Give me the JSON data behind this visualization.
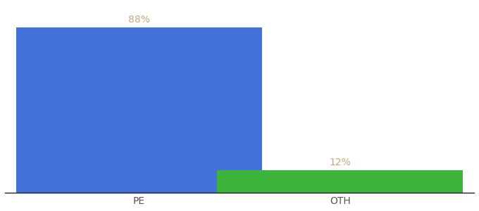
{
  "categories": [
    "PE",
    "OTH"
  ],
  "values": [
    88,
    12
  ],
  "bar_colors": [
    "#4472db",
    "#3db53d"
  ],
  "label_color": "#c8a882",
  "label_fontsize": 10,
  "tick_fontsize": 10,
  "tick_color": "#555555",
  "background_color": "#ffffff",
  "ylim": [
    0,
    100
  ],
  "bar_width": 0.55,
  "annotations": [
    "88%",
    "12%"
  ],
  "x_positions": [
    0.3,
    0.75
  ],
  "xlim": [
    0.0,
    1.05
  ]
}
